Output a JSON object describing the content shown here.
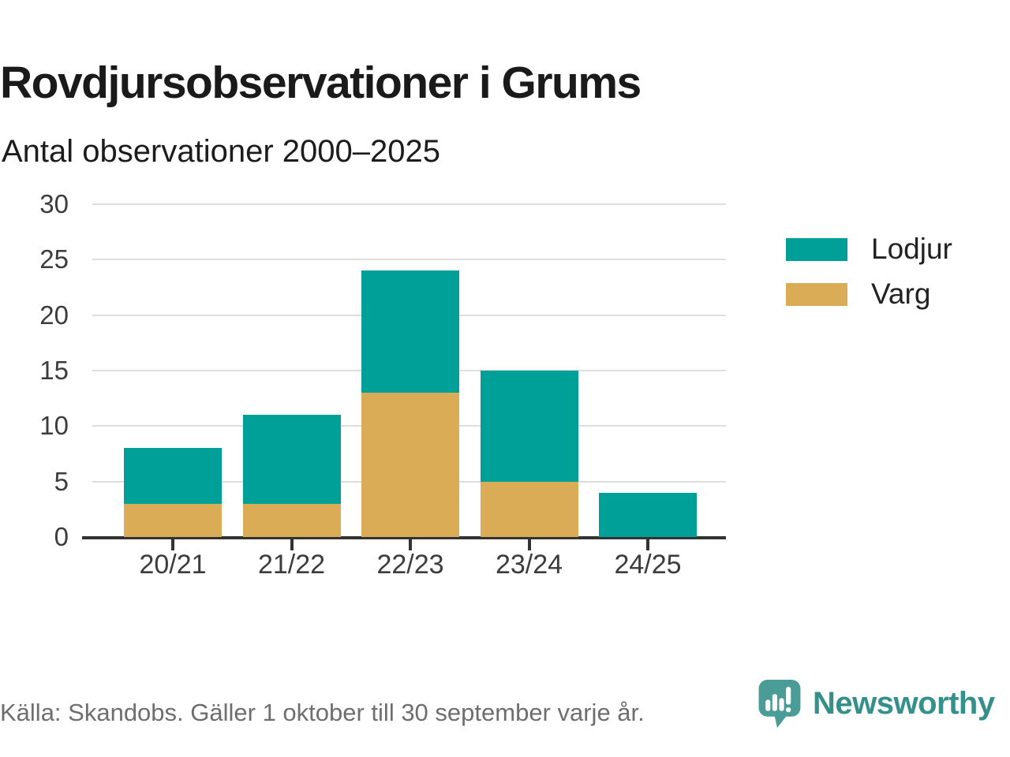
{
  "header": {
    "title": "Rovdjursobservationer i Grums",
    "subtitle": "Antal observationer 2000–2025"
  },
  "chart_data": {
    "type": "bar",
    "stacked": true,
    "stack_order": "bottom_to_top",
    "categories": [
      "20/21",
      "21/22",
      "22/23",
      "23/24",
      "24/25"
    ],
    "series": [
      {
        "name": "Varg",
        "color": "#d9ac55",
        "values": [
          3,
          3,
          13,
          5,
          0
        ]
      },
      {
        "name": "Lodjur",
        "color": "#00a099",
        "values": [
          5,
          8,
          11,
          10,
          4
        ]
      }
    ],
    "totals": [
      8,
      11,
      24,
      15,
      4
    ],
    "yticks": [
      0,
      5,
      10,
      15,
      20,
      25,
      30
    ],
    "ylim": [
      0,
      30
    ],
    "xlabel": "",
    "ylabel": "",
    "grid": true,
    "legend_position": "right"
  },
  "legend": {
    "items": [
      {
        "label": "Lodjur",
        "color": "#00a099"
      },
      {
        "label": "Varg",
        "color": "#d9ac55"
      }
    ]
  },
  "footer": {
    "source": "Källa: Skandobs. Gäller 1 oktober till 30 september varje år.",
    "brand": "Newsworthy"
  },
  "colors": {
    "lodjur": "#00a099",
    "varg": "#d9ac55",
    "axis": "#333333",
    "gridline": "#dedede",
    "text_dark": "#1a1a1a",
    "text_axis": "#3c3c3c",
    "text_source": "#6e6e6e",
    "brand_teal": "#33908b",
    "logo_bubble": "#4a9c97"
  }
}
